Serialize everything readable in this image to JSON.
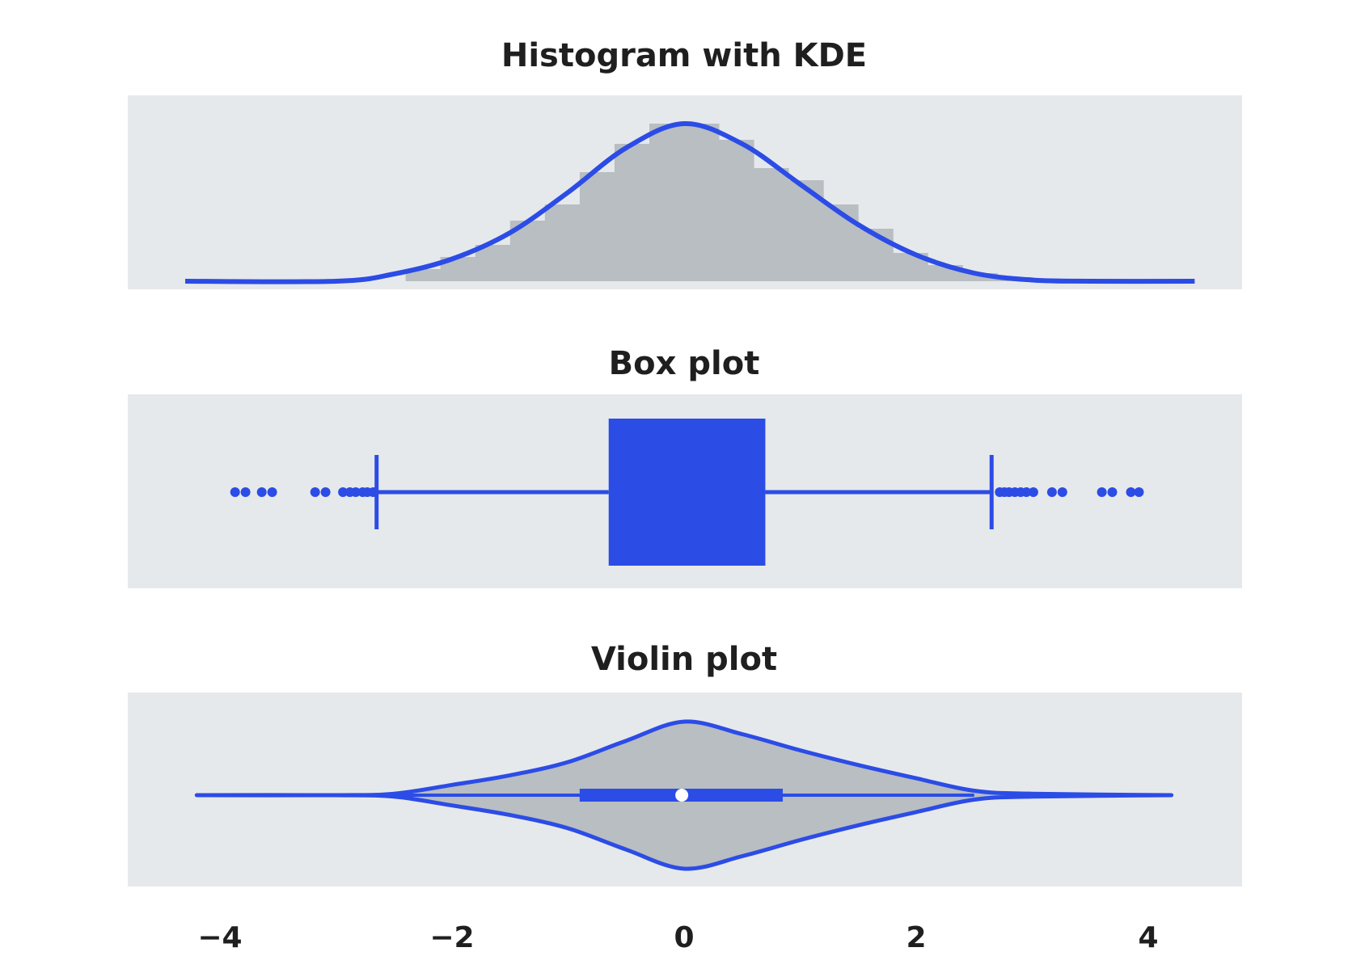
{
  "colors": {
    "panel_background": "#e6e9ec",
    "accent": "#2c4ce6",
    "fill": "#b8bec2",
    "text": "#1f1f1f",
    "median_marker": "#ffffff"
  },
  "chart_data": [
    {
      "type": "bar",
      "subtype": "histogram-with-kde",
      "title": "Histogram with KDE",
      "grid": false,
      "xlim": [
        -4.4,
        4.9
      ],
      "bins": [
        {
          "x0": -2.4,
          "x1": -2.1,
          "density": 0.03
        },
        {
          "x0": -2.1,
          "x1": -1.8,
          "density": 0.06
        },
        {
          "x0": -1.8,
          "x1": -1.5,
          "density": 0.09
        },
        {
          "x0": -1.5,
          "x1": -1.2,
          "density": 0.15
        },
        {
          "x0": -1.2,
          "x1": -0.9,
          "density": 0.19
        },
        {
          "x0": -0.9,
          "x1": -0.6,
          "density": 0.27
        },
        {
          "x0": -0.6,
          "x1": -0.3,
          "density": 0.34
        },
        {
          "x0": -0.3,
          "x1": 0.0,
          "density": 0.39
        },
        {
          "x0": 0.0,
          "x1": 0.3,
          "density": 0.39
        },
        {
          "x0": 0.3,
          "x1": 0.6,
          "density": 0.35
        },
        {
          "x0": 0.6,
          "x1": 0.9,
          "density": 0.28
        },
        {
          "x0": 0.9,
          "x1": 1.2,
          "density": 0.25
        },
        {
          "x0": 1.2,
          "x1": 1.5,
          "density": 0.19
        },
        {
          "x0": 1.5,
          "x1": 1.8,
          "density": 0.13
        },
        {
          "x0": 1.8,
          "x1": 2.1,
          "density": 0.07
        },
        {
          "x0": 2.1,
          "x1": 2.4,
          "density": 0.04
        },
        {
          "x0": 2.4,
          "x1": 2.7,
          "density": 0.02
        },
        {
          "x0": 2.7,
          "x1": 3.0,
          "density": 0.01
        }
      ],
      "kde": {
        "x": [
          -4.3,
          -3.0,
          -2.5,
          -2.0,
          -1.5,
          -1.0,
          -0.5,
          0.0,
          0.5,
          1.0,
          1.5,
          2.0,
          2.5,
          3.0,
          3.5,
          4.4
        ],
        "y": [
          0.0,
          0.0,
          0.018,
          0.055,
          0.12,
          0.22,
          0.33,
          0.39,
          0.34,
          0.24,
          0.14,
          0.065,
          0.02,
          0.003,
          0.0,
          0.0
        ],
        "ylim": [
          0,
          0.42
        ]
      }
    },
    {
      "type": "box",
      "title": "Box plot",
      "grid": false,
      "q1": -0.65,
      "q3": 0.7,
      "whisker_low": -2.65,
      "whisker_high": 2.65,
      "outliers": [
        -3.87,
        -3.78,
        -3.64,
        -3.55,
        -3.18,
        -3.09,
        -2.94,
        -2.88,
        -2.83,
        -2.77,
        -2.73,
        -2.68,
        2.72,
        2.76,
        2.8,
        2.85,
        2.9,
        2.95,
        3.01,
        3.17,
        3.26,
        3.6,
        3.69,
        3.85,
        3.92
      ]
    },
    {
      "type": "area",
      "subtype": "violin",
      "title": "Violin plot",
      "grid": false,
      "x": [
        -4.2,
        -3.0,
        -2.5,
        -2.0,
        -1.5,
        -1.0,
        -0.5,
        0.0,
        0.5,
        1.0,
        1.5,
        2.0,
        2.5,
        3.0,
        4.2
      ],
      "half_width": [
        0.0,
        0.0,
        0.02,
        0.14,
        0.27,
        0.45,
        0.74,
        1.0,
        0.83,
        0.61,
        0.41,
        0.23,
        0.06,
        0.02,
        0.0
      ],
      "box": {
        "q1": -0.9,
        "q3": 0.85,
        "median": -0.02
      },
      "whisker_low": -2.5,
      "whisker_high": 2.5
    }
  ],
  "x_axis": {
    "ticks": [
      -4,
      -2,
      0,
      2,
      4
    ],
    "tick_labels": [
      "−4",
      "−2",
      "0",
      "2",
      "4"
    ]
  }
}
